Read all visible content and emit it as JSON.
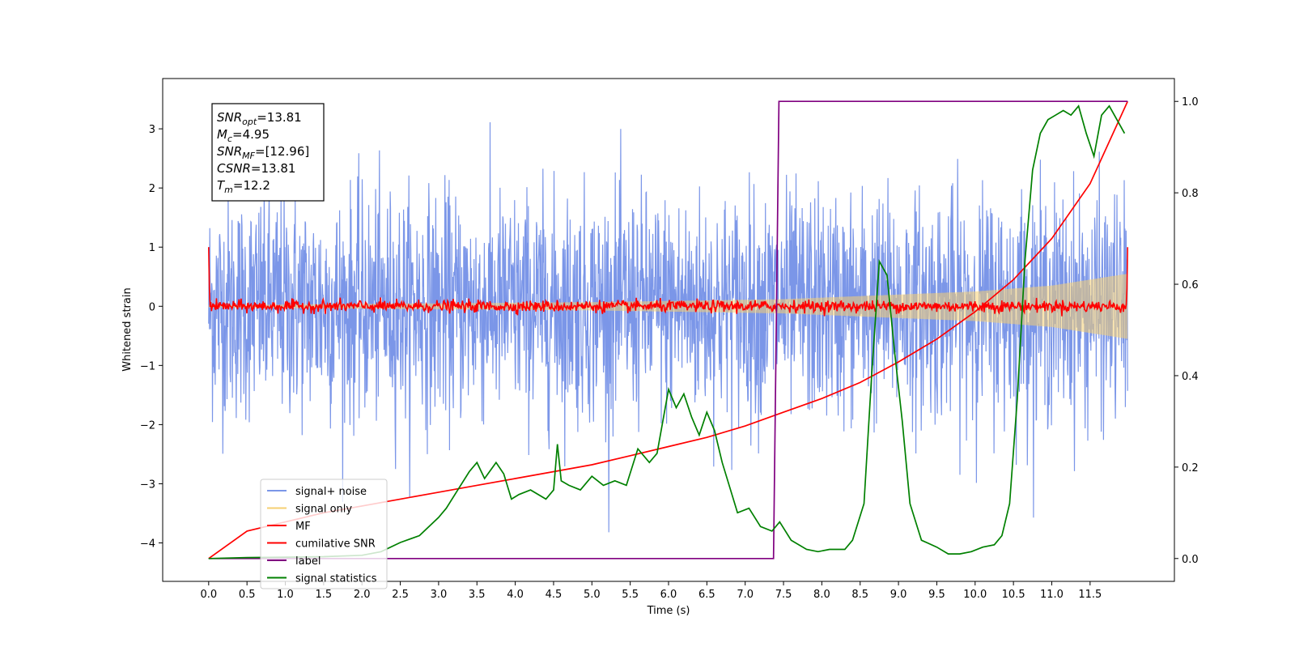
{
  "chart_data": {
    "type": "line",
    "xlabel": "Time (s)",
    "ylabel": "Whitened strain",
    "ylabel_right": "",
    "xlim": [
      -0.6,
      12.6
    ],
    "ylim": [
      -4.65,
      3.85
    ],
    "ylim_right": [
      -0.05,
      1.05
    ],
    "xticks": [
      0.0,
      0.5,
      1.0,
      1.5,
      2.0,
      2.5,
      3.0,
      3.5,
      4.0,
      4.5,
      5.0,
      5.5,
      6.0,
      6.5,
      7.0,
      7.5,
      8.0,
      8.5,
      9.0,
      9.5,
      10.0,
      10.5,
      11.0,
      11.5
    ],
    "xtick_labels": [
      "0.0",
      "0.5",
      "1.0",
      "1.5",
      "2.0",
      "2.5",
      "3.0",
      "3.5",
      "4.0",
      "4.5",
      "5.0",
      "5.5",
      "6.0",
      "6.5",
      "7.0",
      "7.5",
      "8.0",
      "8.5",
      "9.0",
      "9.5",
      "10.0",
      "10.5",
      "11.0",
      "11.5"
    ],
    "yticks": [
      -4,
      -3,
      -2,
      -1,
      0,
      1,
      2,
      3
    ],
    "ytick_labels": [
      "−4",
      "−3",
      "−2",
      "−1",
      "0",
      "1",
      "2",
      "3"
    ],
    "yticks_right": [
      0.0,
      0.2,
      0.4,
      0.6,
      0.8,
      1.0
    ],
    "ytick_right_labels": [
      "0.0",
      "0.2",
      "0.4",
      "0.6",
      "0.8",
      "1.0"
    ],
    "grid": false,
    "legend_position": "lower-left",
    "annotation": {
      "lines": [
        {
          "base": "SNR",
          "sub": "opt",
          "rest": "=13.81"
        },
        {
          "base": "M",
          "sub": "c",
          "rest": "=4.95"
        },
        {
          "base": "SNR",
          "sub": "MF",
          "rest": "=[12.96]"
        },
        {
          "base": "CSNR",
          "sub": "",
          "rest": "=13.81"
        },
        {
          "base": "T",
          "sub": "m",
          "rest": "=12.2"
        }
      ]
    },
    "series": [
      {
        "name": "signal+ noise",
        "color": "#7b96e8",
        "axis": "left",
        "style": "noise",
        "x_range": [
          0.0,
          11.99
        ],
        "sigma": 0.95,
        "min": -4.15,
        "max": 3.45
      },
      {
        "name": "signal only",
        "color": "#f6cf71",
        "axis": "left",
        "style": "chirp-envelope",
        "x_range": [
          0.0,
          11.99
        ],
        "amplitude": [
          [
            0.0,
            0.02
          ],
          [
            5.0,
            0.07
          ],
          [
            7.5,
            0.12
          ],
          [
            10.0,
            0.25
          ],
          [
            11.0,
            0.35
          ],
          [
            11.99,
            0.55
          ]
        ]
      },
      {
        "name": "MF",
        "color": "#ff0000",
        "axis": "left",
        "style": "noise",
        "x_range": [
          0.0,
          11.99
        ],
        "sigma": 0.05,
        "endpoints": [
          1.0,
          1.0
        ]
      },
      {
        "name": "cumilative SNR",
        "color": "#ff0000",
        "axis": "right",
        "x": [
          0.0,
          0.5,
          1.0,
          1.5,
          2.0,
          2.5,
          3.0,
          3.5,
          4.0,
          4.5,
          5.0,
          5.5,
          6.0,
          6.5,
          7.0,
          7.5,
          8.0,
          8.5,
          9.0,
          9.5,
          10.0,
          10.5,
          11.0,
          11.5,
          11.99
        ],
        "y": [
          0.0,
          0.06,
          0.08,
          0.1,
          0.115,
          0.13,
          0.145,
          0.16,
          0.175,
          0.19,
          0.205,
          0.225,
          0.245,
          0.265,
          0.29,
          0.32,
          0.35,
          0.385,
          0.43,
          0.48,
          0.54,
          0.61,
          0.7,
          0.82,
          1.0
        ]
      },
      {
        "name": "label",
        "color": "#800080",
        "axis": "right",
        "x": [
          0.0,
          7.37,
          7.44,
          11.99
        ],
        "y": [
          0.0,
          0.0,
          1.0,
          1.0
        ]
      },
      {
        "name": "signal statistics",
        "color": "#008000",
        "axis": "right",
        "x": [
          0.0,
          0.5,
          1.0,
          1.5,
          2.0,
          2.25,
          2.5,
          2.75,
          3.0,
          3.1,
          3.25,
          3.4,
          3.5,
          3.6,
          3.75,
          3.85,
          3.95,
          4.05,
          4.2,
          4.4,
          4.5,
          4.55,
          4.6,
          4.7,
          4.85,
          5.0,
          5.15,
          5.3,
          5.45,
          5.6,
          5.75,
          5.85,
          6.0,
          6.1,
          6.2,
          6.3,
          6.4,
          6.5,
          6.6,
          6.7,
          6.9,
          7.05,
          7.2,
          7.35,
          7.45,
          7.6,
          7.8,
          7.95,
          8.1,
          8.3,
          8.4,
          8.55,
          8.65,
          8.75,
          8.85,
          8.95,
          9.05,
          9.15,
          9.3,
          9.5,
          9.65,
          9.8,
          9.95,
          10.1,
          10.25,
          10.35,
          10.45,
          10.55,
          10.65,
          10.75,
          10.85,
          10.95,
          11.05,
          11.15,
          11.25,
          11.35,
          11.45,
          11.55,
          11.65,
          11.75,
          11.85,
          11.95
        ],
        "y": [
          0.0,
          0.002,
          0.003,
          0.004,
          0.007,
          0.015,
          0.035,
          0.05,
          0.09,
          0.11,
          0.15,
          0.19,
          0.21,
          0.175,
          0.21,
          0.185,
          0.13,
          0.14,
          0.15,
          0.13,
          0.15,
          0.25,
          0.17,
          0.16,
          0.15,
          0.18,
          0.16,
          0.17,
          0.16,
          0.24,
          0.21,
          0.23,
          0.37,
          0.33,
          0.36,
          0.31,
          0.27,
          0.32,
          0.28,
          0.21,
          0.1,
          0.11,
          0.07,
          0.06,
          0.08,
          0.04,
          0.02,
          0.015,
          0.02,
          0.02,
          0.04,
          0.12,
          0.4,
          0.65,
          0.62,
          0.45,
          0.3,
          0.12,
          0.04,
          0.025,
          0.01,
          0.01,
          0.015,
          0.025,
          0.03,
          0.05,
          0.12,
          0.35,
          0.65,
          0.85,
          0.93,
          0.96,
          0.97,
          0.98,
          0.97,
          0.99,
          0.93,
          0.88,
          0.97,
          0.99,
          0.96,
          0.93
        ]
      }
    ]
  }
}
